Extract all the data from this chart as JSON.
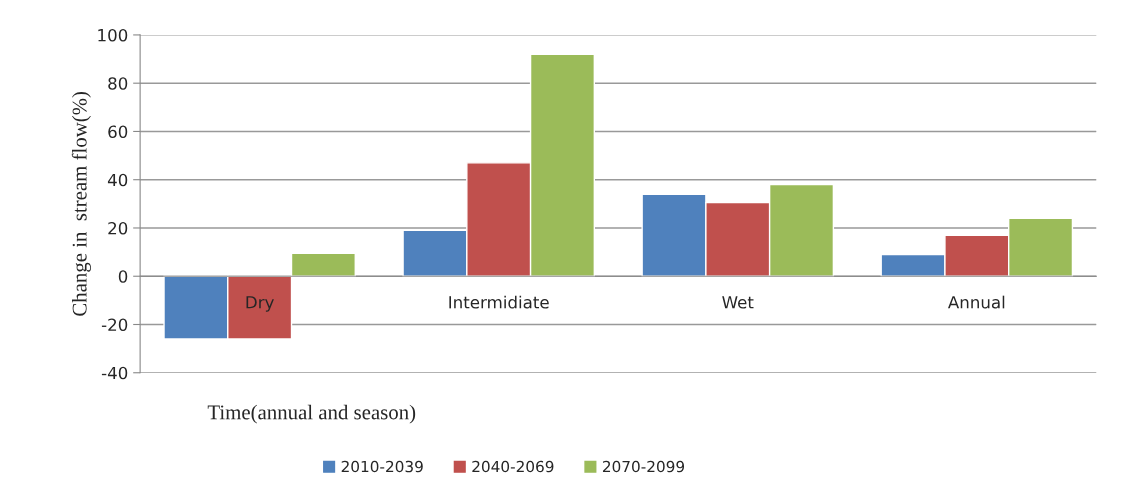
{
  "chart_data": {
    "type": "bar",
    "xlabel": "Time(annual and season)",
    "ylabel": "Change in  stream flow(%)",
    "categories": [
      "Dry",
      "Intermidiate",
      "Wet",
      "Annual"
    ],
    "series": [
      {
        "name": "2010-2039",
        "color": "#4f81bd",
        "values": [
          -26,
          19,
          34,
          9
        ]
      },
      {
        "name": "2040-2069",
        "color": "#c0504d",
        "values": [
          -26,
          47,
          30.5,
          17
        ]
      },
      {
        "name": "2070-2099",
        "color": "#9bbb59",
        "values": [
          9.5,
          92,
          38,
          24
        ]
      }
    ],
    "ylim": [
      -40,
      100
    ],
    "yticks": [
      -40,
      -20,
      0,
      20,
      40,
      60,
      80,
      100
    ],
    "grid": "y",
    "legend": "bottom"
  }
}
